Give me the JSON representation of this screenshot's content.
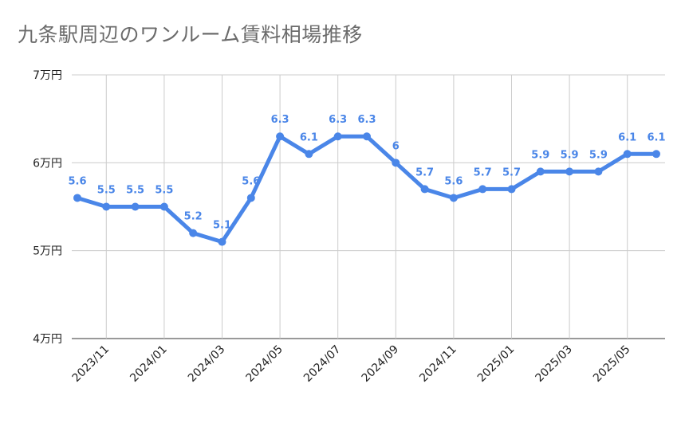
{
  "chart_data": {
    "type": "line",
    "title": "九条駅周辺のワンルーム賃料相場推移",
    "xlabel": "",
    "ylabel": "",
    "ylim": [
      4,
      7
    ],
    "yticks": [
      {
        "value": 7,
        "label": "7万円"
      },
      {
        "value": 6,
        "label": "6万円"
      },
      {
        "value": 5,
        "label": "5万円"
      },
      {
        "value": 4,
        "label": "4万円"
      }
    ],
    "x": [
      "2023/10",
      "2023/11",
      "2023/12",
      "2024/01",
      "2024/02",
      "2024/03",
      "2024/04",
      "2024/05",
      "2024/06",
      "2024/07",
      "2024/08",
      "2024/09",
      "2024/10",
      "2024/11",
      "2024/12",
      "2025/01",
      "2025/02",
      "2025/03",
      "2025/04",
      "2025/05",
      "2025/06"
    ],
    "xticks": [
      "2023/11",
      "2024/01",
      "2024/03",
      "2024/05",
      "2024/07",
      "2024/09",
      "2024/11",
      "2025/01",
      "2025/03",
      "2025/05"
    ],
    "series": [
      {
        "name": "賃料相場",
        "color": "#4a86e8",
        "values": [
          5.6,
          5.5,
          5.5,
          5.5,
          5.2,
          5.1,
          5.6,
          6.3,
          6.1,
          6.3,
          6.3,
          6,
          5.7,
          5.6,
          5.7,
          5.7,
          5.9,
          5.9,
          5.9,
          6.1,
          6.1
        ],
        "labels": [
          "5.6",
          "5.5",
          "5.5",
          "5.5",
          "5.2",
          "5.1",
          "5.6",
          "6.3",
          "6.1",
          "6.3",
          "6.3",
          "6",
          "5.7",
          "5.6",
          "5.7",
          "5.7",
          "5.9",
          "5.9",
          "5.9",
          "6.1",
          "6.1"
        ]
      }
    ],
    "grid": true
  }
}
